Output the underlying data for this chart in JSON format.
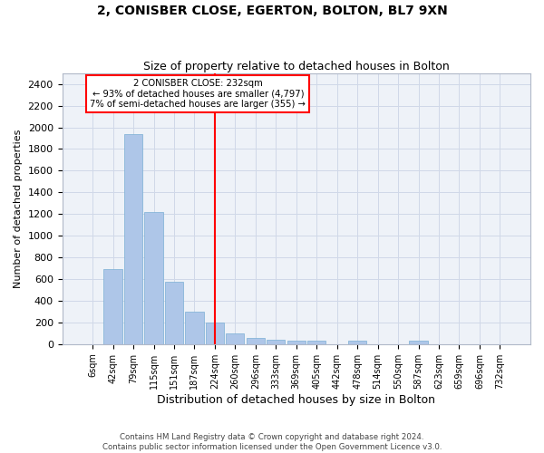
{
  "title": "2, CONISBER CLOSE, EGERTON, BOLTON, BL7 9XN",
  "subtitle": "Size of property relative to detached houses in Bolton",
  "xlabel": "Distribution of detached houses by size in Bolton",
  "ylabel": "Number of detached properties",
  "footer_line1": "Contains HM Land Registry data © Crown copyright and database right 2024.",
  "footer_line2": "Contains public sector information licensed under the Open Government Licence v3.0.",
  "bar_labels": [
    "6sqm",
    "42sqm",
    "79sqm",
    "115sqm",
    "151sqm",
    "187sqm",
    "224sqm",
    "260sqm",
    "296sqm",
    "333sqm",
    "369sqm",
    "405sqm",
    "442sqm",
    "478sqm",
    "514sqm",
    "550sqm",
    "587sqm",
    "623sqm",
    "659sqm",
    "696sqm",
    "732sqm"
  ],
  "bar_values": [
    0,
    690,
    1940,
    1220,
    575,
    300,
    200,
    100,
    60,
    43,
    32,
    30,
    0,
    30,
    0,
    0,
    30,
    0,
    0,
    0,
    0
  ],
  "bar_color": "#aec6e8",
  "bar_edge_color": "#7aafd4",
  "grid_color": "#d0d8e8",
  "background_color": "#eef2f8",
  "vline_x_index": 6,
  "vline_color": "red",
  "annotation_line1": "2 CONISBER CLOSE: 232sqm",
  "annotation_line2": "← 93% of detached houses are smaller (4,797)",
  "annotation_line3": "7% of semi-detached houses are larger (355) →",
  "annotation_box_color": "red",
  "ylim": [
    0,
    2500
  ],
  "yticks": [
    0,
    200,
    400,
    600,
    800,
    1000,
    1200,
    1400,
    1600,
    1800,
    2000,
    2200,
    2400
  ]
}
